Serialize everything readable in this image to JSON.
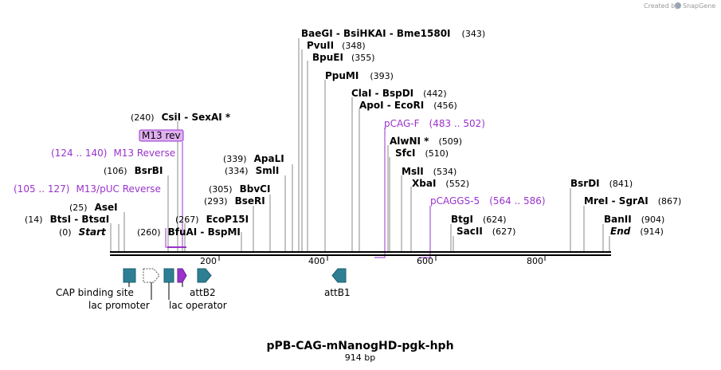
{
  "credit": {
    "text": "Created by",
    "brand": "SnapGene"
  },
  "title": "pPB-CAG-mNanogHD-pgk-hph",
  "length": "914 bp",
  "axis_ticks": [
    "200",
    "400",
    "600",
    "800"
  ],
  "sites": [
    {
      "name": "Start",
      "pos": "(0)",
      "italic": true
    },
    {
      "name": "BtsI  -  BtsαI",
      "pos": "(14)"
    },
    {
      "name": "AseI",
      "pos": "(25)"
    },
    {
      "name": "BsrBI",
      "pos": "(106)"
    },
    {
      "name": "CsiI  -  SexAI *",
      "pos": "(240)"
    },
    {
      "name": "BfuAI  -  BspMI",
      "pos": "(260)"
    },
    {
      "name": "EcoP15I",
      "pos": "(267)"
    },
    {
      "name": "BseRI",
      "pos": "(293)"
    },
    {
      "name": "BbvCI",
      "pos": "(305)"
    },
    {
      "name": "SmlI",
      "pos": "(334)"
    },
    {
      "name": "ApaLI",
      "pos": "(339)"
    },
    {
      "name": "BaeGI  -  BsiHKAI  -  Bme1580I",
      "pos": "(343)"
    },
    {
      "name": "PvuII",
      "pos": "(348)"
    },
    {
      "name": "BpuEI",
      "pos": "(355)"
    },
    {
      "name": "PpuMI",
      "pos": "(393)"
    },
    {
      "name": "ClaI  -  BspDI",
      "pos": "(442)"
    },
    {
      "name": "ApoI  -  EcoRI",
      "pos": "(456)"
    },
    {
      "name": "AlwNI *",
      "pos": "(509)"
    },
    {
      "name": "SfcI",
      "pos": "(510)"
    },
    {
      "name": "MslI",
      "pos": "(534)"
    },
    {
      "name": "XbaI",
      "pos": "(552)"
    },
    {
      "name": "BtgI",
      "pos": "(624)"
    },
    {
      "name": "SacII",
      "pos": "(627)"
    },
    {
      "name": "BsrDI",
      "pos": "(841)"
    },
    {
      "name": "MreI  -  SgrAI",
      "pos": "(867)"
    },
    {
      "name": "BanII",
      "pos": "(904)"
    },
    {
      "name": "End",
      "pos": "(914)",
      "italic": true
    }
  ],
  "primers": [
    {
      "range": "(124 .. 140)",
      "name": "M13 Reverse"
    },
    {
      "range": "(105 .. 127)",
      "name": "M13/pUC Reverse"
    },
    {
      "range": "(483 .. 502)",
      "name": "pCAG-F"
    },
    {
      "range": "(564 .. 586)",
      "name": "pCAGGS-5"
    }
  ],
  "primer_box": "M13 rev",
  "features": [
    {
      "name": "CAP binding site"
    },
    {
      "name": "lac promoter"
    },
    {
      "name": "lac operator"
    },
    {
      "name": "attB2"
    },
    {
      "name": "attB1"
    }
  ],
  "colors": {
    "feature": "#2e7f93",
    "primer": "#9933cc",
    "primer_box_fill": "#e0b0f0"
  }
}
